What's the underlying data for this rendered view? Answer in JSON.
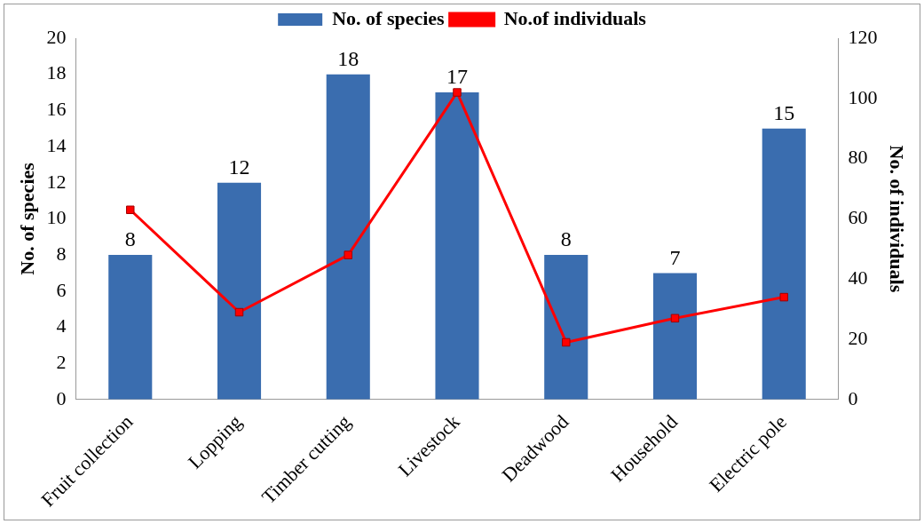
{
  "chart_data": {
    "type": "bar",
    "categories": [
      "Fruit collection",
      "Lopping",
      "Timber cutting",
      "Livestock",
      "Deadwood",
      "Household",
      "Electric pole"
    ],
    "series": [
      {
        "name": "No. of species",
        "color": "#3a6daf",
        "values": [
          8,
          12,
          18,
          17,
          8,
          7,
          15
        ],
        "value_labels": [
          "8",
          "12",
          "18",
          "17",
          "8",
          "7",
          "15"
        ]
      },
      {
        "name": "No.of individuals",
        "type": "line",
        "axis": "y2",
        "color": "#ff0000",
        "values": [
          63,
          29,
          48,
          102,
          19,
          27,
          34
        ]
      }
    ],
    "ylabel": "No. of species",
    "y2label": "No. of individuals",
    "ylim": [
      0,
      20
    ],
    "yticks": [
      0,
      2,
      4,
      6,
      8,
      10,
      12,
      14,
      16,
      18,
      20
    ],
    "y2lim": [
      0,
      120
    ],
    "y2ticks": [
      0,
      20,
      40,
      60,
      80,
      100,
      120
    ],
    "grid": false,
    "legend": "top",
    "marker": "square",
    "line_style": "solid"
  }
}
